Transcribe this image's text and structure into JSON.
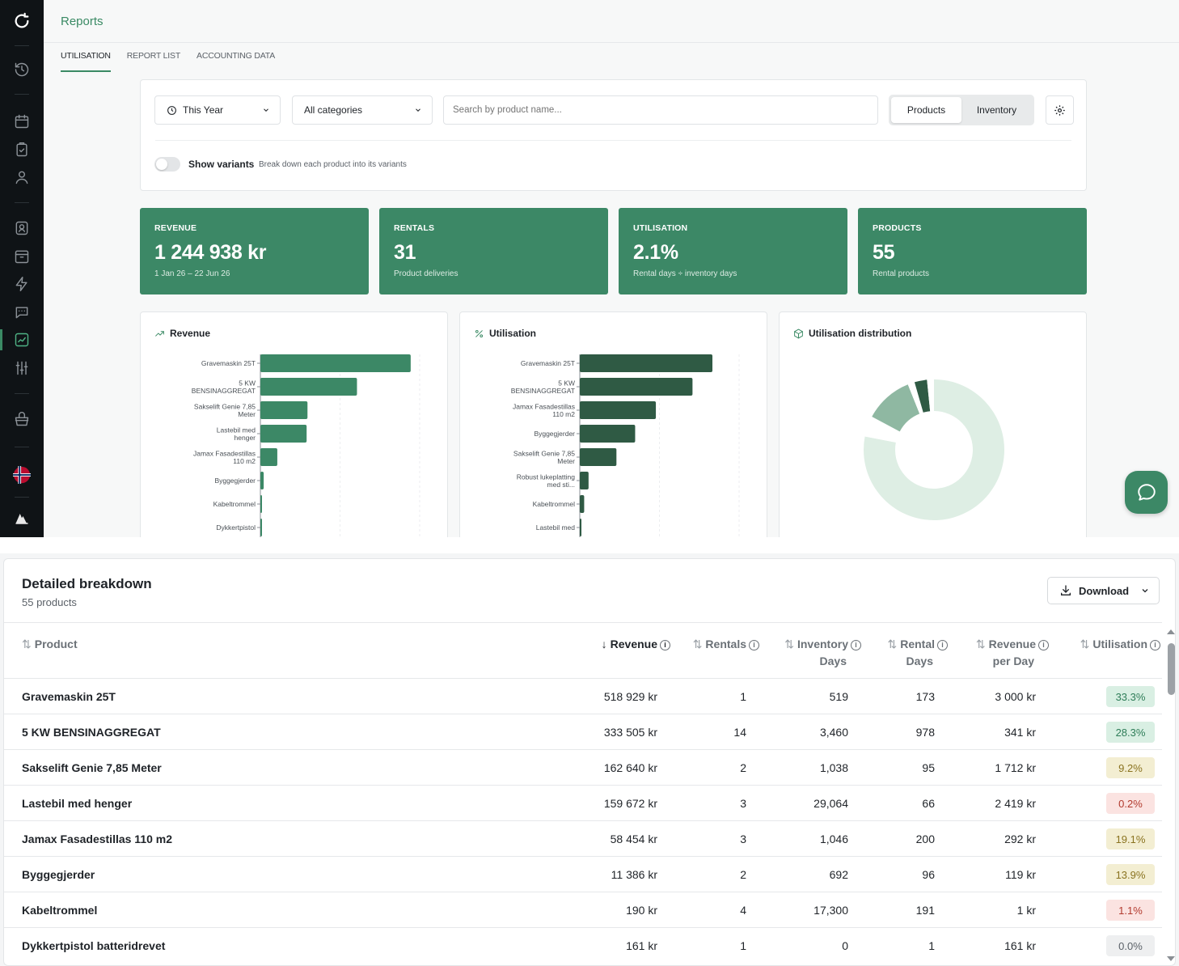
{
  "header": {
    "title": "Reports"
  },
  "tabs": [
    {
      "label": "UTILISATION",
      "active": true
    },
    {
      "label": "REPORT LIST",
      "active": false
    },
    {
      "label": "ACCOUNTING DATA",
      "active": false
    }
  ],
  "filters": {
    "period": "This Year",
    "category": "All categories",
    "search_placeholder": "Search by product name...",
    "view_options": [
      "Products",
      "Inventory"
    ],
    "view_selected": "Products",
    "show_variants_label": "Show variants",
    "show_variants_hint": "Break down each product into its variants",
    "show_variants_on": false
  },
  "kpis": [
    {
      "label": "REVENUE",
      "value": "1 244 938 kr",
      "sub": "1 Jan 26 – 22 Jun 26"
    },
    {
      "label": "RENTALS",
      "value": "31",
      "sub": "Product deliveries"
    },
    {
      "label": "UTILISATION",
      "value": "2.1%",
      "sub": "Rental days ÷ inventory days"
    },
    {
      "label": "PRODUCTS",
      "value": "55",
      "sub": "Rental products"
    }
  ],
  "charts": {
    "revenue_title": "Revenue",
    "utilisation_title": "Utilisation",
    "distribution_title": "Utilisation distribution"
  },
  "chart_data": [
    {
      "type": "bar",
      "orientation": "horizontal",
      "title": "Revenue",
      "categories": [
        "Gravemaskin 25T",
        "5 KW BENSINAGGREGAT",
        "Sakselift Genie 7,85 Meter",
        "Lastebil med henger",
        "Jamax Fasadestillas 110 m2",
        "Byggegjerder",
        "Kabeltrommel",
        "Dykkertpistol"
      ],
      "tick_lines": [
        [
          "Gravemaskin 25T"
        ],
        [
          "5 KW",
          "BENSINAGGREGAT"
        ],
        [
          "Sakselift Genie 7,85",
          "Meter"
        ],
        [
          "Lastebil med",
          "henger"
        ],
        [
          "Jamax Fasadestillas",
          "110 m2"
        ],
        [
          "Byggegjerder"
        ],
        [
          "Kabeltrommel"
        ],
        [
          "Dykkertpistol"
        ]
      ],
      "values": [
        518929,
        333505,
        162640,
        159672,
        58454,
        11386,
        190,
        161
      ],
      "xlim": [
        0,
        550000
      ],
      "grid": true,
      "color": "#3c8866"
    },
    {
      "type": "bar",
      "orientation": "horizontal",
      "title": "Utilisation",
      "categories": [
        "Gravemaskin 25T",
        "5 KW BENSINAGGREGAT",
        "Jamax Fasadestillas 110 m2",
        "Byggegjerder",
        "Sakselift Genie 7,85 Meter",
        "Robust lukeplatting med sti...",
        "Kabeltrommel",
        "Lastebil med"
      ],
      "tick_lines": [
        [
          "Gravemaskin 25T"
        ],
        [
          "5 KW",
          "BENSINAGGREGAT"
        ],
        [
          "Jamax Fasadestillas",
          "110 m2"
        ],
        [
          "Byggegjerder"
        ],
        [
          "Sakselift Genie 7,85",
          "Meter"
        ],
        [
          "Robust lukeplatting",
          "med sti..."
        ],
        [
          "Kabeltrommel"
        ],
        [
          "Lastebil med"
        ]
      ],
      "values": [
        33.3,
        28.3,
        19.1,
        13.9,
        9.2,
        2.2,
        1.1,
        0.2
      ],
      "xlim": [
        0,
        40
      ],
      "grid": true,
      "color": "#2f5a44"
    },
    {
      "type": "pie",
      "donut": true,
      "title": "Utilisation distribution",
      "slices": [
        {
          "value": 49,
          "color": "#deeee4"
        },
        {
          "value": 3,
          "color": "#ffffff"
        },
        {
          "value": 7,
          "color": "#8fb8a2"
        },
        {
          "value": 1,
          "color": "#ffffff"
        },
        {
          "value": 1.8,
          "color": "#2f5a44"
        },
        {
          "value": 1,
          "color": "#ffffff"
        }
      ]
    }
  ],
  "breakdown": {
    "title": "Detailed breakdown",
    "subtitle": "55 products",
    "download_label": "Download",
    "columns": {
      "product": "Product",
      "revenue": "Revenue",
      "rentals": "Rentals",
      "inventory_days": [
        "Inventory",
        "Days"
      ],
      "rental_days": [
        "Rental",
        "Days"
      ],
      "revenue_per_day": [
        "Revenue",
        "per Day"
      ],
      "utilisation": "Utilisation"
    },
    "rows": [
      {
        "product": "Gravemaskin 25T",
        "revenue": "518 929 kr",
        "rentals": "1",
        "inventory_days": "519",
        "rental_days": "173",
        "revenue_per_day": "3 000 kr",
        "utilisation": "33.3%",
        "bg": "#d9efe3",
        "fg": "#2e7d58"
      },
      {
        "product": "5 KW BENSINAGGREGAT",
        "revenue": "333 505 kr",
        "rentals": "14",
        "inventory_days": "3,460",
        "rental_days": "978",
        "revenue_per_day": "341 kr",
        "utilisation": "28.3%",
        "bg": "#d9efe3",
        "fg": "#2e7d58"
      },
      {
        "product": "Sakselift Genie 7,85 Meter",
        "revenue": "162 640 kr",
        "rentals": "2",
        "inventory_days": "1,038",
        "rental_days": "95",
        "revenue_per_day": "1 712 kr",
        "utilisation": "9.2%",
        "bg": "#f3eed2",
        "fg": "#8a7320"
      },
      {
        "product": "Lastebil med henger",
        "revenue": "159 672 kr",
        "rentals": "3",
        "inventory_days": "29,064",
        "rental_days": "66",
        "revenue_per_day": "2 419 kr",
        "utilisation": "0.2%",
        "bg": "#fbe3e1",
        "fg": "#b23a2e"
      },
      {
        "product": "Jamax Fasadestillas 110 m2",
        "revenue": "58 454 kr",
        "rentals": "3",
        "inventory_days": "1,046",
        "rental_days": "200",
        "revenue_per_day": "292 kr",
        "utilisation": "19.1%",
        "bg": "#f3eed2",
        "fg": "#8a7320"
      },
      {
        "product": "Byggegjerder",
        "revenue": "11 386 kr",
        "rentals": "2",
        "inventory_days": "692",
        "rental_days": "96",
        "revenue_per_day": "119 kr",
        "utilisation": "13.9%",
        "bg": "#f3eed2",
        "fg": "#8a7320"
      },
      {
        "product": "Kabeltrommel",
        "revenue": "190 kr",
        "rentals": "4",
        "inventory_days": "17,300",
        "rental_days": "191",
        "revenue_per_day": "1 kr",
        "utilisation": "1.1%",
        "bg": "#fbe3e1",
        "fg": "#b23a2e"
      },
      {
        "product": "Dykkertpistol batteridrevet",
        "revenue": "161 kr",
        "rentals": "1",
        "inventory_days": "0",
        "rental_days": "1",
        "revenue_per_day": "161 kr",
        "utilisation": "0.0%",
        "bg": "#eeeff0",
        "fg": "#5b6168"
      }
    ]
  },
  "icons": {
    "sidebar": [
      "history-icon",
      "calendar-icon",
      "checklist-icon",
      "user-icon",
      "contact-icon",
      "archive-icon",
      "lightning-icon",
      "chat-icon",
      "reports-chart-icon",
      "sliders-icon",
      "basket-icon",
      "norway-flag-icon",
      "company-logo-icon"
    ],
    "chat_fab": "chat-bubble-icon"
  }
}
